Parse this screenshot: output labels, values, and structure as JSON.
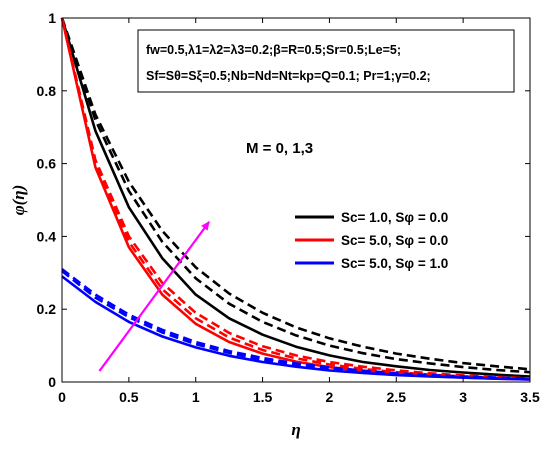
{
  "chart_data": {
    "type": "line",
    "xlabel": "η",
    "ylabel": "φ(η)",
    "xlim": [
      0,
      3.5
    ],
    "ylim": [
      0,
      1
    ],
    "xticks": [
      "0",
      "0.5",
      "1",
      "1.5",
      "2",
      "2.5",
      "3",
      "3.5"
    ],
    "yticks": [
      "0",
      "0.2",
      "0.4",
      "0.6",
      "0.8",
      "1"
    ],
    "grid": false,
    "legend_position": "right",
    "params_line1": "fw=0.5,λ1=λ2=λ3=0.2;β=R=0.5;Sr=0.5;Le=5;",
    "params_line2": "Sf=Sθ=Sξ=0.5;Nb=Nd=Nt=kp=Q=0.1; Pr=1;γ=0.2;",
    "annotation": "M = 0, 1,3",
    "arrow_color": "#ff00ff",
    "arrow": {
      "from": [
        0.28,
        0.03
      ],
      "to": [
        1.1,
        0.44
      ]
    },
    "legend": [
      {
        "label": "Sc= 1.0, Sφ = 0.0",
        "color": "#000000"
      },
      {
        "label": "Sc= 5.0, Sφ = 0.0",
        "color": "#ff0000"
      },
      {
        "label": "Sc= 5.0, Sφ = 1.0",
        "color": "#0000ff"
      }
    ],
    "x": [
      0,
      0.25,
      0.5,
      0.75,
      1.0,
      1.25,
      1.5,
      1.75,
      2.0,
      2.25,
      2.5,
      2.75,
      3.0,
      3.25,
      3.5
    ],
    "series": [
      {
        "color": "#000000",
        "style": "solid",
        "values": [
          1.0,
          0.69,
          0.48,
          0.34,
          0.24,
          0.175,
          0.13,
          0.097,
          0.073,
          0.055,
          0.043,
          0.033,
          0.026,
          0.02,
          0.015
        ]
      },
      {
        "color": "#000000",
        "style": "dashed",
        "values": [
          1.0,
          0.72,
          0.525,
          0.385,
          0.285,
          0.215,
          0.165,
          0.128,
          0.1,
          0.079,
          0.063,
          0.051,
          0.041,
          0.033,
          0.027
        ]
      },
      {
        "color": "#000000",
        "style": "dashed",
        "values": [
          1.0,
          0.735,
          0.55,
          0.415,
          0.315,
          0.243,
          0.19,
          0.15,
          0.12,
          0.097,
          0.078,
          0.064,
          0.052,
          0.043,
          0.035
        ]
      },
      {
        "color": "#ff0000",
        "style": "solid",
        "values": [
          1.0,
          0.59,
          0.37,
          0.24,
          0.16,
          0.11,
          0.078,
          0.056,
          0.041,
          0.03,
          0.022,
          0.016,
          0.012,
          0.009,
          0.007
        ]
      },
      {
        "color": "#ff0000",
        "style": "dashed",
        "values": [
          1.0,
          0.6,
          0.385,
          0.255,
          0.175,
          0.122,
          0.088,
          0.065,
          0.048,
          0.036,
          0.027,
          0.02,
          0.015,
          0.011,
          0.008
        ]
      },
      {
        "color": "#ff0000",
        "style": "dashed",
        "values": [
          1.0,
          0.61,
          0.4,
          0.272,
          0.19,
          0.135,
          0.098,
          0.073,
          0.055,
          0.042,
          0.032,
          0.024,
          0.018,
          0.014,
          0.01
        ]
      },
      {
        "color": "#0000ff",
        "style": "solid",
        "values": [
          0.29,
          0.22,
          0.165,
          0.125,
          0.095,
          0.072,
          0.055,
          0.042,
          0.032,
          0.025,
          0.019,
          0.015,
          0.012,
          0.009,
          0.007
        ]
      },
      {
        "color": "#0000ff",
        "style": "dashed",
        "values": [
          0.305,
          0.232,
          0.178,
          0.136,
          0.104,
          0.08,
          0.061,
          0.047,
          0.036,
          0.028,
          0.022,
          0.017,
          0.013,
          0.01,
          0.008
        ]
      },
      {
        "color": "#0000ff",
        "style": "dashed",
        "values": [
          0.31,
          0.24,
          0.185,
          0.143,
          0.11,
          0.085,
          0.066,
          0.051,
          0.04,
          0.031,
          0.024,
          0.019,
          0.015,
          0.012,
          0.009
        ]
      }
    ]
  }
}
